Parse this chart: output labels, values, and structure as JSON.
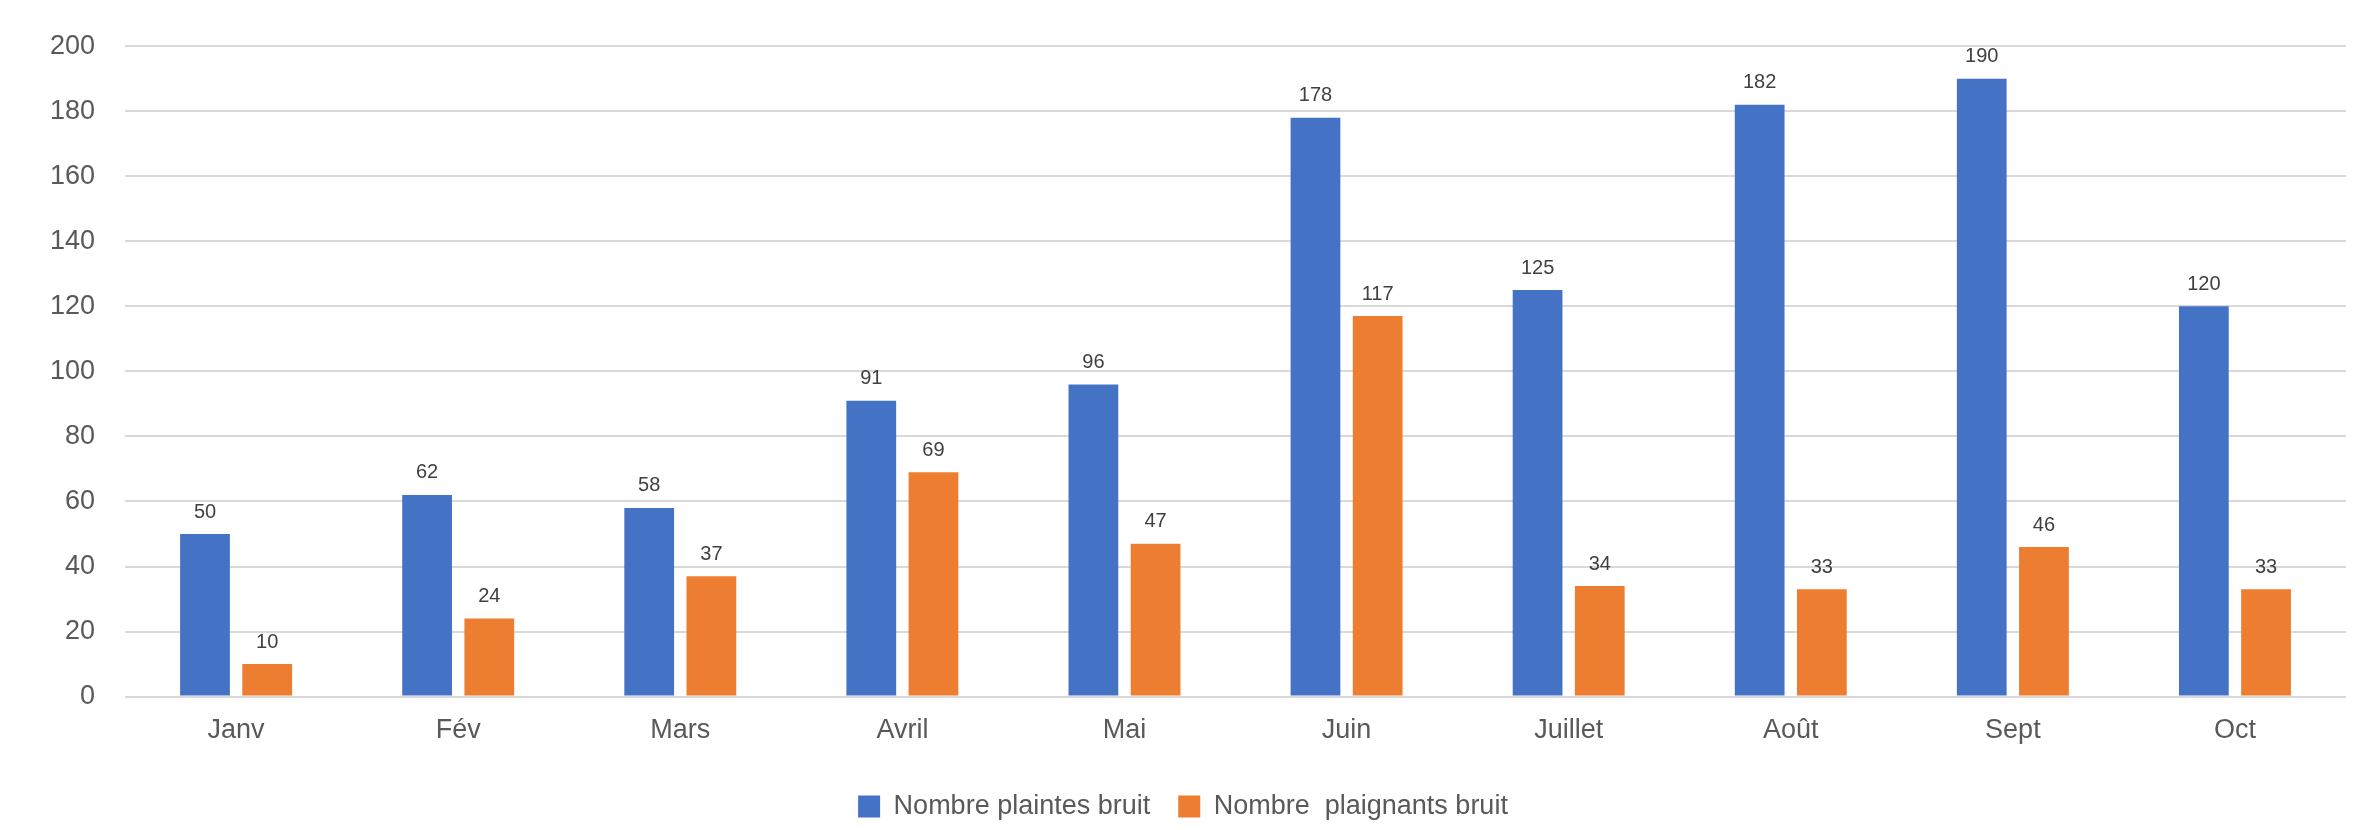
{
  "chart_data": {
    "type": "bar",
    "categories": [
      "Janv",
      "Fév",
      "Mars",
      "Avril",
      "Mai",
      "Juin",
      "Juillet",
      "Août",
      "Sept",
      "Oct"
    ],
    "series": [
      {
        "name": "Nombre plaintes bruit",
        "color": "#4472c4",
        "values": [
          50,
          62,
          58,
          91,
          96,
          178,
          125,
          182,
          190,
          120
        ]
      },
      {
        "name": "Nombre  plaignants bruit",
        "color": "#ed7d31",
        "values": [
          10,
          24,
          37,
          69,
          47,
          117,
          34,
          33,
          46,
          33
        ]
      }
    ],
    "ylim": [
      0,
      200
    ],
    "yticks": [
      0,
      20,
      40,
      60,
      80,
      100,
      120,
      140,
      160,
      180,
      200
    ],
    "grid": "y",
    "legend": "bottom",
    "data_labels": true
  }
}
